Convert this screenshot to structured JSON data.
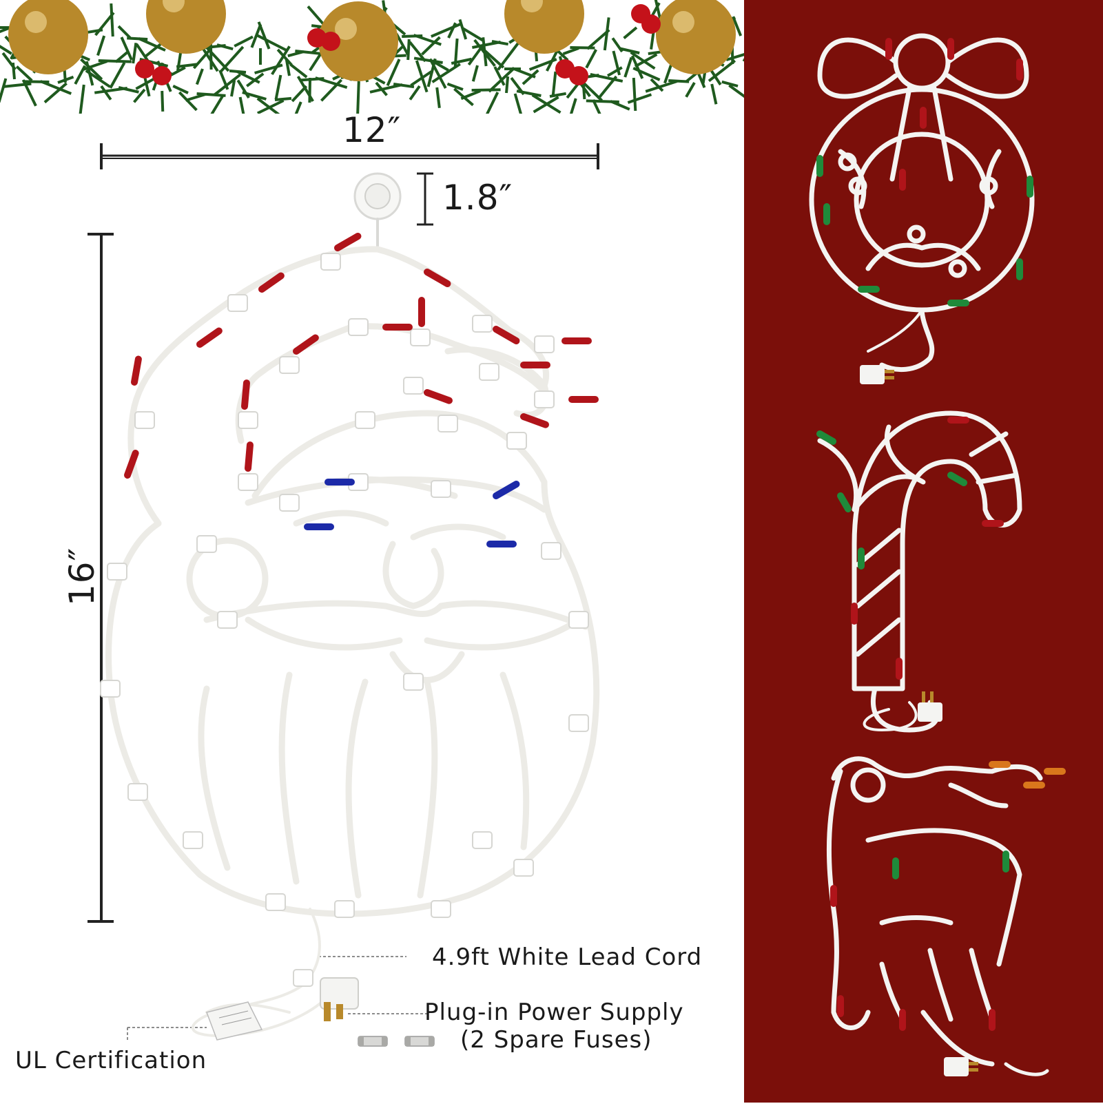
{
  "dimensions": {
    "width_label": "12″",
    "height_label": "16″",
    "hook_label": "1.8″"
  },
  "callouts": {
    "lead_cord": "4.9ft White Lead Cord",
    "power_supply_line1": "Plug-in Power Supply",
    "power_supply_line2": "(2 Spare Fuses)",
    "certification": "UL Certification"
  },
  "colors": {
    "right_panel_bg": "#7b0f0a",
    "wire": "#f4f4f2",
    "bulb_red": "#b0141a",
    "bulb_blue": "#1c2aa8",
    "bulb_green": "#1f8a3a",
    "bulb_orange": "#d9771c",
    "ornament_gold": "#b8892b",
    "garland_green": "#1f5a1e",
    "berry_red": "#c4121a"
  },
  "figures": {
    "main": "santa-face-window-light",
    "variants": [
      "wreath-window-light",
      "candy-cane-window-light",
      "reindeer-window-light"
    ]
  }
}
